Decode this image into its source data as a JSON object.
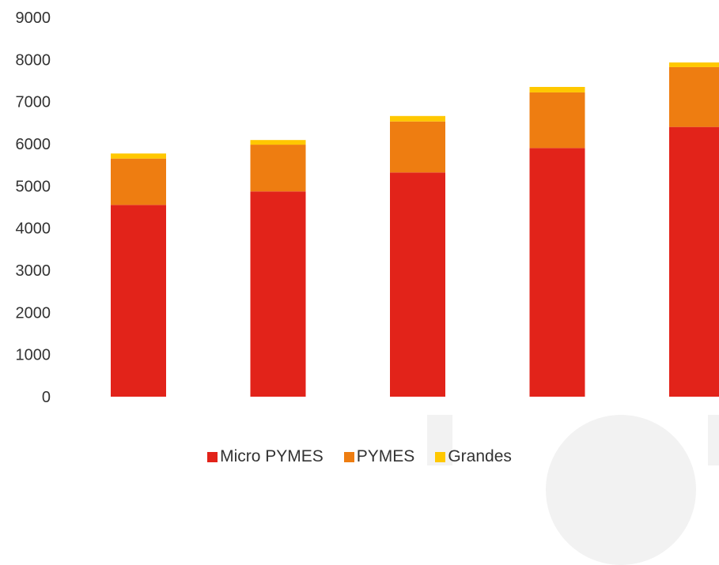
{
  "chart_data": {
    "type": "bar",
    "stacked": true,
    "categories": [
      "",
      "",
      "",
      "",
      ""
    ],
    "series": [
      {
        "name": "Micro PYMES",
        "color": "#E2231A",
        "values": [
          4550,
          4870,
          5320,
          5900,
          6400
        ]
      },
      {
        "name": "PYMES",
        "color": "#EE7D11",
        "values": [
          1100,
          1110,
          1210,
          1320,
          1420
        ]
      },
      {
        "name": "Grandes",
        "color": "#FFC800",
        "values": [
          120,
          110,
          130,
          130,
          110
        ]
      }
    ],
    "title": "",
    "xlabel": "",
    "ylabel": "",
    "ylim": [
      0,
      9000
    ],
    "yticks": [
      "0",
      "1000",
      "2000",
      "3000",
      "4000",
      "5000",
      "6000",
      "7000",
      "8000",
      "9000"
    ],
    "grid": false,
    "legend_position": "bottom"
  }
}
